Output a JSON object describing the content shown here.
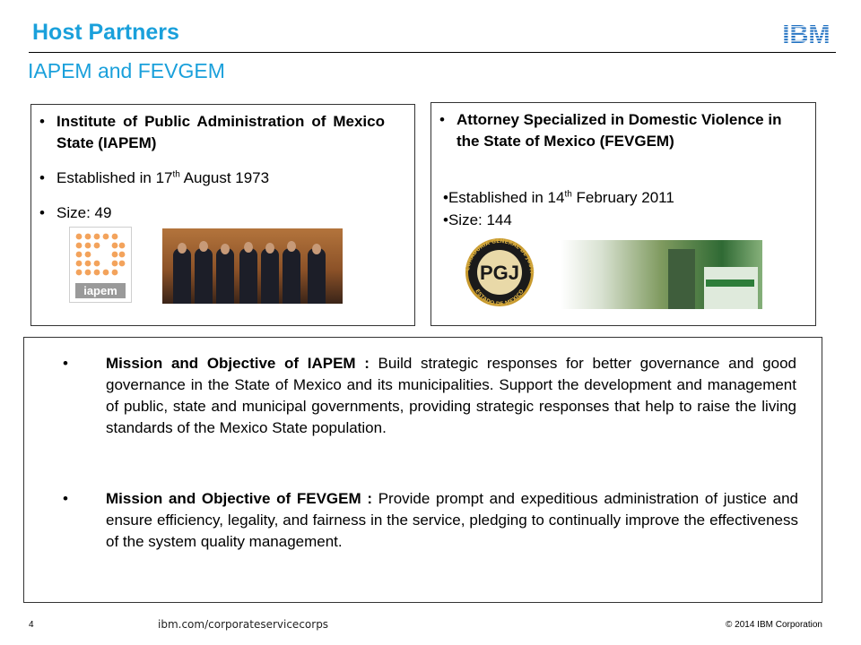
{
  "header": {
    "title": "Host Partners",
    "subtitle": "IAPEM and FEVGEM",
    "logo_text": "IBM",
    "brand_color": "#1aa0db"
  },
  "left_box": {
    "bullet": "•",
    "item1": "Institute of Public Administration of Mexico State (IAPEM)",
    "item2_prefix": "Established in 17",
    "item2_sup": "th",
    "item2_suffix": " August 1973",
    "item3": "Size: 49",
    "logo_text": "iapem",
    "photo_icon": "group-photo"
  },
  "right_box": {
    "bullet": "•",
    "item1": "Attorney Specialized in Domestic Violence in the State of Mexico (FEVGEM)",
    "item2_prefix": "•Established in 14",
    "item2_sup": "th",
    "item2_suffix": " February 2011",
    "item3": "•Size: 144",
    "seal_text": "PGJ",
    "seal_ring_top": "PROCURADURIA GENERAL DE JUSTICIA",
    "seal_ring_bottom": "ESTADO DE MEXICO",
    "photo_icon": "building-photo"
  },
  "mission": {
    "bullet": "•",
    "iapem_label": "Mission and Objective  of IAPEM : ",
    "iapem_text": "Build strategic responses for better governance and good governance in the State of Mexico and its municipalities. Support the development and management of public, state and municipal governments, providing strategic responses that help to raise the living standards of the Mexico State population.",
    "fevgem_label": "Mission and Objective of FEVGEM : ",
    "fevgem_text": "Provide prompt and expeditious administration of justice and ensure efficiency, legality, and fairness in the service, pledging to continually improve the effectiveness of the system quality management."
  },
  "footer": {
    "page_number": "4",
    "url": "ibm.com/corporateservicecorps",
    "copyright": "© 2014 IBM Corporation"
  }
}
